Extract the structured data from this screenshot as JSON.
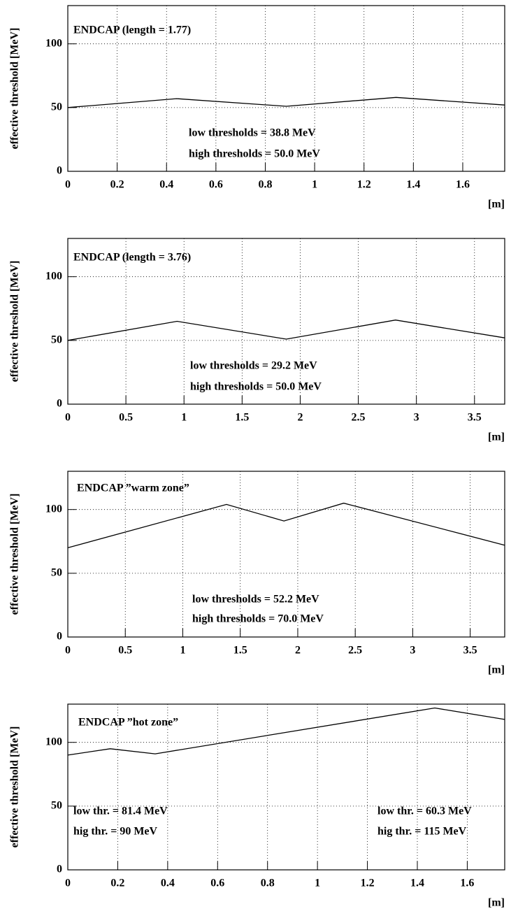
{
  "chart_data": [
    {
      "type": "line",
      "ylabel": "effective threshold [MeV]",
      "xlabel": "[m]",
      "annotations": [
        "ENDCAP    (length = 1.77)",
        "low thresholds  =  38.8 MeV",
        "high thresholds  =  50.0 MeV"
      ],
      "x": [
        0,
        0.44,
        0.885,
        1.33,
        1.77
      ],
      "values": [
        50,
        57,
        51,
        58,
        52
      ],
      "color": "#000000",
      "xlim": [
        0,
        1.77
      ],
      "ylim": [
        0,
        130
      ],
      "xticks": [
        0,
        0.2,
        0.4,
        0.6,
        0.8,
        1,
        1.2,
        1.4,
        1.6
      ],
      "yticks": [
        0,
        50,
        100
      ],
      "grid": true
    },
    {
      "type": "line",
      "ylabel": "effective threshold [MeV]",
      "xlabel": "[m]",
      "annotations": [
        "ENDCAP    (length = 3.76)",
        "low thresholds  =  29.2 MeV",
        "high thresholds  =  50.0 MeV"
      ],
      "x": [
        0,
        0.94,
        1.88,
        2.82,
        3.76
      ],
      "values": [
        50,
        65,
        51,
        66,
        52
      ],
      "color": "#000000",
      "xlim": [
        0,
        3.76
      ],
      "ylim": [
        0,
        130
      ],
      "xticks": [
        0,
        0.5,
        1,
        1.5,
        2,
        2.5,
        3,
        3.5
      ],
      "yticks": [
        0,
        50,
        100
      ],
      "grid": true
    },
    {
      "type": "line",
      "ylabel": "effective threshold [MeV]",
      "xlabel": "[m]",
      "annotations": [
        "ENDCAP  ”warm zone”",
        "low thresholds   =  52.2 MeV",
        "high thresholds  =  70.0 MeV"
      ],
      "x": [
        0,
        1.38,
        1.88,
        2.4,
        3.8
      ],
      "values": [
        70,
        104,
        91,
        105,
        72
      ],
      "color": "#000000",
      "xlim": [
        0,
        3.8
      ],
      "ylim": [
        0,
        130
      ],
      "xticks": [
        0,
        0.5,
        1,
        1.5,
        2,
        2.5,
        3,
        3.5
      ],
      "yticks": [
        0,
        50,
        100
      ],
      "grid": true
    },
    {
      "type": "line",
      "ylabel": "effective threshold [MeV]",
      "xlabel": "[m]",
      "annotations": [
        "ENDCAP  ”hot zone”",
        "low thr. = 81.4 MeV",
        "hig thr. = 90 MeV",
        "low thr. = 60.3 MeV",
        "hig thr. = 115 MeV"
      ],
      "x": [
        0,
        0.17,
        0.35,
        1.47,
        1.75
      ],
      "values": [
        90,
        95,
        91,
        127,
        118
      ],
      "color": "#000000",
      "xlim": [
        0,
        1.75
      ],
      "ylim": [
        0,
        130
      ],
      "xticks": [
        0,
        0.2,
        0.4,
        0.6,
        0.8,
        1,
        1.2,
        1.4,
        1.6
      ],
      "yticks": [
        0,
        50,
        100
      ],
      "grid": true
    }
  ]
}
